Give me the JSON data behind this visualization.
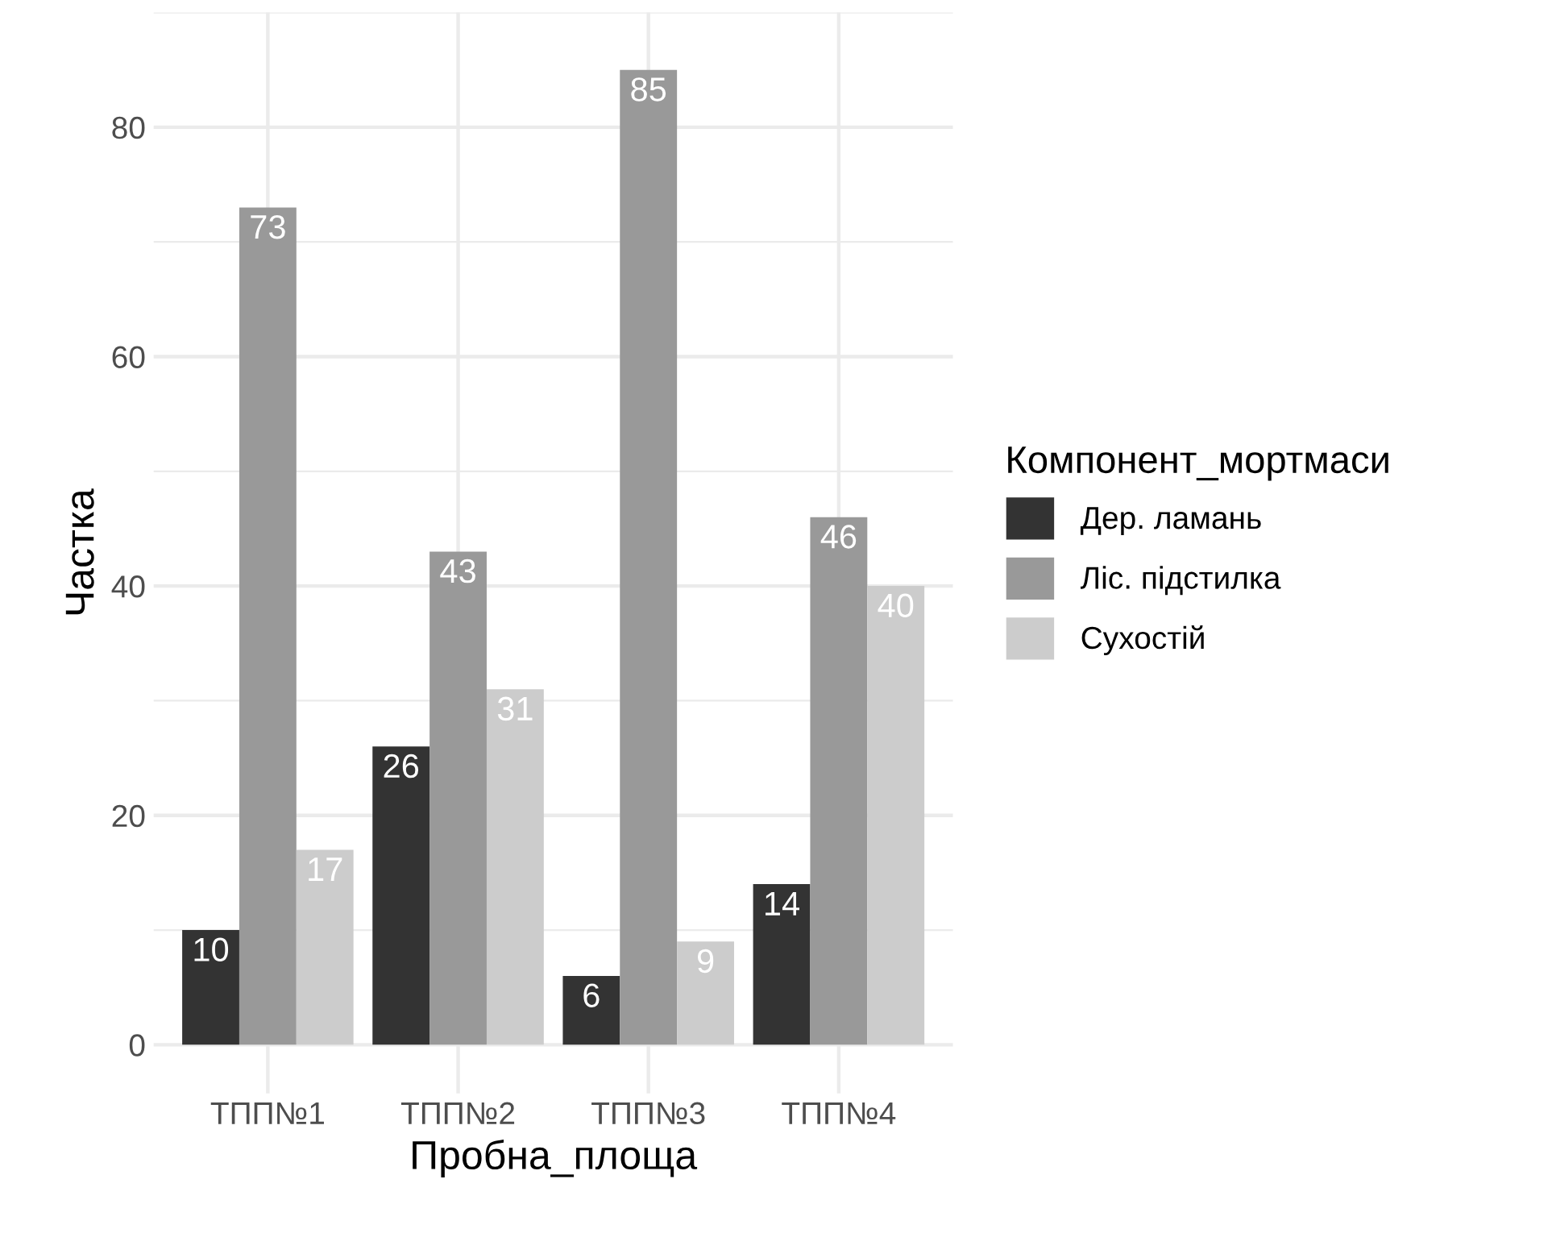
{
  "chart_data": {
    "type": "bar",
    "xlabel": "Пробна_площа",
    "ylabel": "Частка",
    "legend_title": "Компонент_мортмаси",
    "categories": [
      "ТПП№1",
      "ТПП№2",
      "ТПП№3",
      "ТПП№4"
    ],
    "series": [
      {
        "name": "Дер. ламань",
        "color": "#333333",
        "values": [
          10,
          26,
          6,
          14
        ]
      },
      {
        "name": "Ліс. підстилка",
        "color": "#999999",
        "values": [
          73,
          43,
          85,
          46
        ]
      },
      {
        "name": "Сухостій",
        "color": "#cccccc",
        "values": [
          17,
          31,
          9,
          40
        ]
      }
    ],
    "ylim": [
      -4.25,
      90
    ],
    "yticks": [
      0,
      {
        "value": 10,
        "label": null
      },
      20,
      {
        "value": 30,
        "label": null
      },
      40,
      {
        "value": 50,
        "label": null
      },
      60,
      {
        "value": 70,
        "label": null
      },
      80,
      {
        "value": 90,
        "label": null
      }
    ],
    "grid": true,
    "legend": "right",
    "data_labels": true
  }
}
